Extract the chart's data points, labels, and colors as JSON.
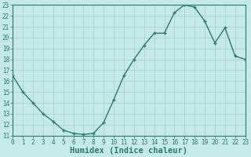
{
  "x": [
    0,
    1,
    2,
    3,
    4,
    5,
    6,
    7,
    8,
    9,
    10,
    11,
    12,
    13,
    14,
    15,
    16,
    17,
    18,
    19,
    20,
    21,
    22,
    23
  ],
  "y": [
    16.5,
    15.0,
    14.0,
    13.0,
    12.3,
    11.5,
    11.2,
    11.1,
    11.2,
    12.2,
    14.3,
    16.5,
    18.0,
    19.3,
    20.4,
    20.4,
    22.3,
    23.0,
    22.8,
    21.5,
    19.5,
    20.9,
    18.3,
    18.0
  ],
  "line_color": "#2d7a6e",
  "marker": "+",
  "marker_size": 3.5,
  "marker_linewidth": 1.0,
  "bg_color": "#c5e8e8",
  "grid_color": "#a8d0d0",
  "axis_color": "#2d7a6e",
  "xlabel": "Humidex (Indice chaleur)",
  "xlim": [
    0,
    23
  ],
  "ylim": [
    11,
    23
  ],
  "yticks": [
    11,
    12,
    13,
    14,
    15,
    16,
    17,
    18,
    19,
    20,
    21,
    22,
    23
  ],
  "xticks": [
    0,
    1,
    2,
    3,
    4,
    5,
    6,
    7,
    8,
    9,
    10,
    11,
    12,
    13,
    14,
    15,
    16,
    17,
    18,
    19,
    20,
    21,
    22,
    23
  ],
  "tick_fontsize": 5.5,
  "xlabel_fontsize": 7.5,
  "xlabel_fontweight": "bold",
  "linewidth": 1.0
}
